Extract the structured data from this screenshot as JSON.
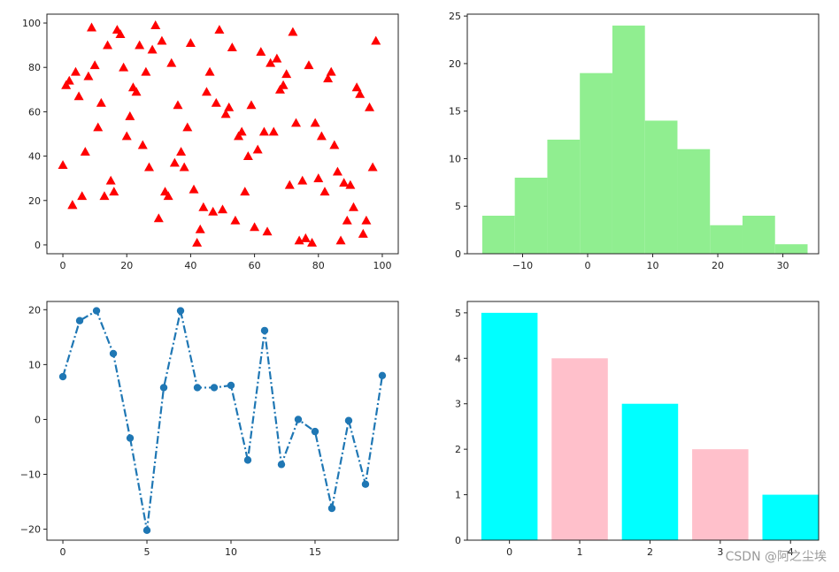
{
  "watermark": "CSDN @阿之尘埃",
  "chart_data": [
    {
      "type": "scatter",
      "marker": "triangle",
      "color": "#ff0000",
      "xlim": [
        -5,
        105
      ],
      "ylim": [
        -4,
        104
      ],
      "xticks": [
        0,
        20,
        40,
        60,
        80,
        100
      ],
      "yticks": [
        0,
        20,
        40,
        60,
        80,
        100
      ],
      "points": [
        [
          0,
          36
        ],
        [
          1,
          72
        ],
        [
          2,
          74
        ],
        [
          3,
          18
        ],
        [
          4,
          78
        ],
        [
          5,
          67
        ],
        [
          6,
          22
        ],
        [
          7,
          42
        ],
        [
          8,
          76
        ],
        [
          9,
          98
        ],
        [
          10,
          81
        ],
        [
          11,
          53
        ],
        [
          12,
          64
        ],
        [
          13,
          22
        ],
        [
          14,
          90
        ],
        [
          15,
          29
        ],
        [
          16,
          24
        ],
        [
          17,
          97
        ],
        [
          18,
          95
        ],
        [
          19,
          80
        ],
        [
          20,
          49
        ],
        [
          21,
          58
        ],
        [
          22,
          71
        ],
        [
          23,
          69
        ],
        [
          24,
          90
        ],
        [
          25,
          45
        ],
        [
          26,
          78
        ],
        [
          27,
          35
        ],
        [
          28,
          88
        ],
        [
          29,
          99
        ],
        [
          30,
          12
        ],
        [
          31,
          92
        ],
        [
          32,
          24
        ],
        [
          33,
          22
        ],
        [
          34,
          82
        ],
        [
          35,
          37
        ],
        [
          36,
          63
        ],
        [
          37,
          42
        ],
        [
          38,
          35
        ],
        [
          39,
          53
        ],
        [
          40,
          91
        ],
        [
          41,
          25
        ],
        [
          42,
          1
        ],
        [
          43,
          7
        ],
        [
          44,
          17
        ],
        [
          45,
          69
        ],
        [
          46,
          78
        ],
        [
          47,
          15
        ],
        [
          48,
          64
        ],
        [
          49,
          97
        ],
        [
          50,
          16
        ],
        [
          51,
          59
        ],
        [
          52,
          62
        ],
        [
          53,
          89
        ],
        [
          54,
          11
        ],
        [
          55,
          49
        ],
        [
          56,
          51
        ],
        [
          57,
          24
        ],
        [
          58,
          40
        ],
        [
          59,
          63
        ],
        [
          60,
          8
        ],
        [
          61,
          43
        ],
        [
          62,
          87
        ],
        [
          63,
          51
        ],
        [
          64,
          6
        ],
        [
          65,
          82
        ],
        [
          66,
          51
        ],
        [
          67,
          84
        ],
        [
          68,
          70
        ],
        [
          69,
          72
        ],
        [
          70,
          77
        ],
        [
          71,
          27
        ],
        [
          72,
          96
        ],
        [
          73,
          55
        ],
        [
          74,
          2
        ],
        [
          75,
          29
        ],
        [
          76,
          3
        ],
        [
          77,
          81
        ],
        [
          78,
          1
        ],
        [
          79,
          55
        ],
        [
          80,
          30
        ],
        [
          81,
          49
        ],
        [
          82,
          24
        ],
        [
          83,
          75
        ],
        [
          84,
          78
        ],
        [
          85,
          45
        ],
        [
          86,
          33
        ],
        [
          87,
          2
        ],
        [
          88,
          28
        ],
        [
          89,
          11
        ],
        [
          90,
          27
        ],
        [
          91,
          17
        ],
        [
          92,
          71
        ],
        [
          93,
          68
        ],
        [
          94,
          5
        ],
        [
          95,
          11
        ],
        [
          96,
          62
        ],
        [
          97,
          35
        ],
        [
          98,
          92
        ],
        [
          3,
          18
        ]
      ]
    },
    {
      "type": "histogram",
      "color": "#90ee90",
      "xlim": [
        -18.5,
        35.5
      ],
      "ylim": [
        0,
        25.2
      ],
      "xticks": [
        -10,
        0,
        10,
        20,
        30
      ],
      "yticks": [
        0,
        5,
        10,
        15,
        20,
        25
      ],
      "bin_edges": [
        -16.2,
        -11.2,
        -6.2,
        -1.2,
        3.8,
        8.8,
        13.8,
        18.8,
        23.8,
        28.8,
        33.8
      ],
      "counts": [
        4,
        8,
        12,
        19,
        24,
        14,
        11,
        3,
        4,
        1
      ]
    },
    {
      "type": "line",
      "color": "#1f77b4",
      "linestyle": "dashdot",
      "marker": "circle",
      "xlim": [
        -0.95,
        19.95
      ],
      "ylim": [
        -22,
        21.5
      ],
      "xticks": [
        0,
        5,
        10,
        15
      ],
      "yticks": [
        -20,
        -10,
        0,
        10,
        20
      ],
      "x": [
        0,
        1,
        2,
        3,
        4,
        5,
        6,
        7,
        8,
        9,
        10,
        11,
        12,
        13,
        14,
        15,
        16,
        17,
        18,
        19
      ],
      "y": [
        7.8,
        18,
        19.8,
        12,
        -3.4,
        -20.2,
        5.8,
        19.8,
        5.8,
        5.8,
        6.2,
        -7.4,
        16.2,
        -8.2,
        0,
        -2.2,
        -16.2,
        -0.2,
        -11.8,
        8
      ]
    },
    {
      "type": "bar",
      "colors": [
        "#00ffff",
        "#ffc0cb",
        "#00ffff",
        "#ffc0cb",
        "#00ffff"
      ],
      "xlim": [
        -0.6,
        4.4
      ],
      "ylim": [
        0,
        5.25
      ],
      "xticks": [
        0,
        1,
        2,
        3,
        4
      ],
      "yticks": [
        0,
        1,
        2,
        3,
        4,
        5
      ],
      "categories": [
        "0",
        "1",
        "2",
        "3",
        "4"
      ],
      "values": [
        5,
        4,
        3,
        2,
        1
      ]
    }
  ]
}
